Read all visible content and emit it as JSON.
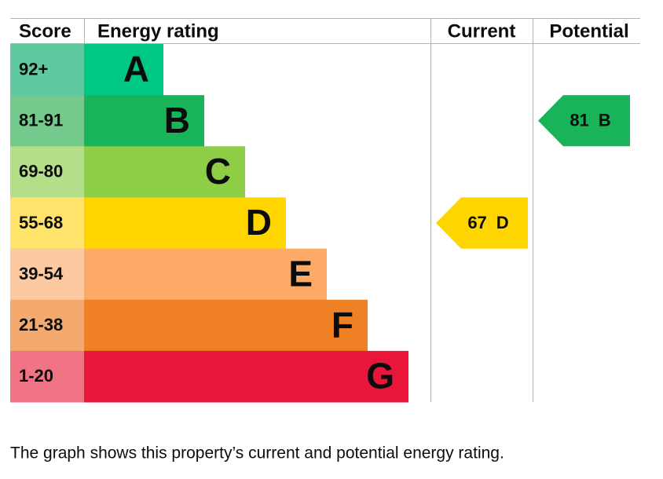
{
  "header": {
    "score": "Score",
    "energy_rating": "Energy rating",
    "current": "Current",
    "potential": "Potential"
  },
  "bands": [
    {
      "score": "92+",
      "letter": "A",
      "color": "#00c781",
      "score_color": "#5fc9a0"
    },
    {
      "score": "81-91",
      "letter": "B",
      "color": "#19b459",
      "score_color": "#74c98c"
    },
    {
      "score": "69-80",
      "letter": "C",
      "color": "#8dce46",
      "score_color": "#b5de88"
    },
    {
      "score": "55-68",
      "letter": "D",
      "color": "#ffd500",
      "score_color": "#ffe36a"
    },
    {
      "score": "39-54",
      "letter": "E",
      "color": "#fcaa65",
      "score_color": "#fdc9a0"
    },
    {
      "score": "21-38",
      "letter": "F",
      "color": "#ef8023",
      "score_color": "#f4aa6e"
    },
    {
      "score": "1-20",
      "letter": "G",
      "color": "#e9153b",
      "score_color": "#f07386"
    }
  ],
  "current": {
    "value": 67,
    "letter": "D"
  },
  "potential": {
    "value": 81,
    "letter": "B"
  },
  "caption": "The graph shows this property’s current and potential energy rating."
}
